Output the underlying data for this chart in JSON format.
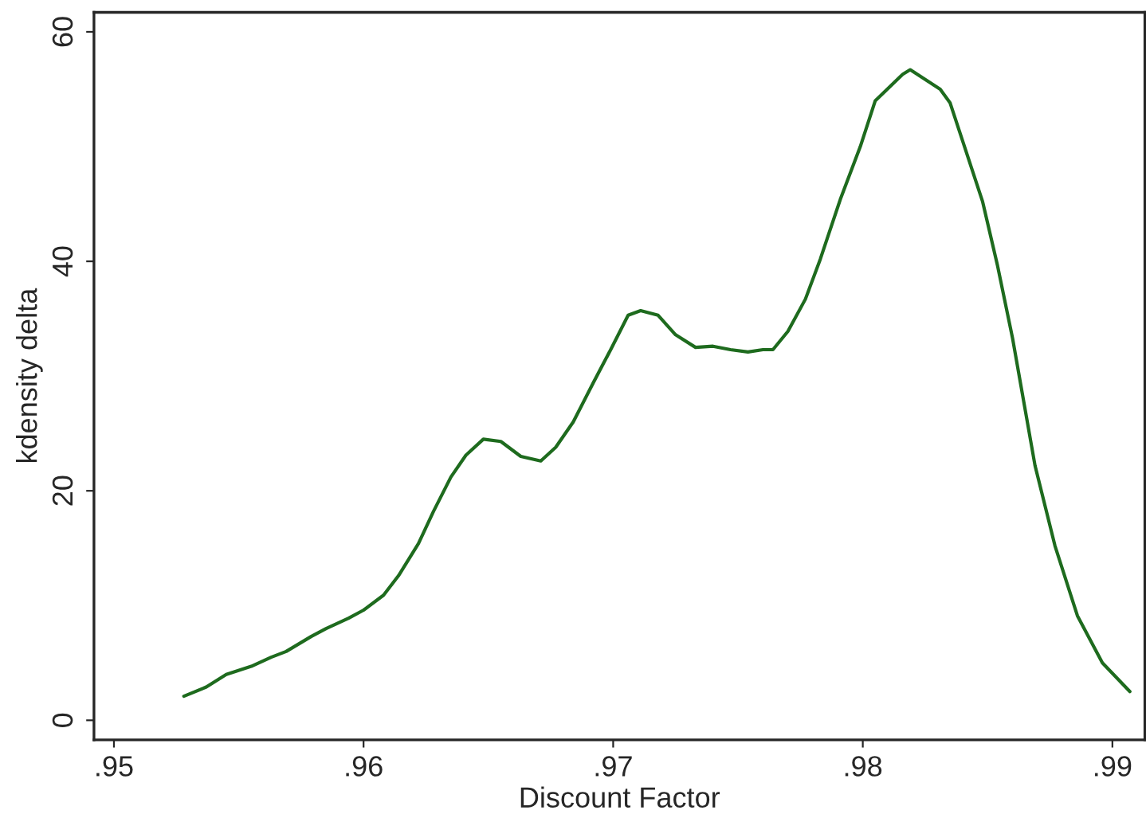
{
  "chart_data": {
    "type": "line",
    "xlabel": "Discount Factor",
    "ylabel": "kdensity delta",
    "x": [
      0.9528,
      0.9537,
      0.9545,
      0.9555,
      0.9563,
      0.9569,
      0.9579,
      0.9585,
      0.9594,
      0.96,
      0.9608,
      0.9614,
      0.9622,
      0.9628,
      0.9635,
      0.9641,
      0.9648,
      0.9655,
      0.9663,
      0.9671,
      0.9677,
      0.9684,
      0.9692,
      0.9699,
      0.9706,
      0.9711,
      0.9718,
      0.9725,
      0.9733,
      0.974,
      0.9747,
      0.9754,
      0.976,
      0.9764,
      0.977,
      0.9777,
      0.9783,
      0.9791,
      0.9799,
      0.9805,
      0.9816,
      0.9819,
      0.9831,
      0.9835,
      0.9848,
      0.9854,
      0.986,
      0.9869,
      0.9877,
      0.9886,
      0.9896,
      0.9907
    ],
    "series": [
      {
        "color": "#1e6b1e",
        "values": [
          2.1,
          2.9,
          4.0,
          4.7,
          5.5,
          6.0,
          7.3,
          8.0,
          8.9,
          9.6,
          10.9,
          12.6,
          15.4,
          18.2,
          21.2,
          23.1,
          24.5,
          24.3,
          23.0,
          22.6,
          23.8,
          26.0,
          29.4,
          32.3,
          35.3,
          35.7,
          35.3,
          33.6,
          32.5,
          32.6,
          32.3,
          32.1,
          32.3,
          32.3,
          33.9,
          36.7,
          40.2,
          45.4,
          50.0,
          54.0,
          56.3,
          56.7,
          55.0,
          53.8,
          45.2,
          39.6,
          33.3,
          22.2,
          15.2,
          9.1,
          5.0,
          2.5
        ]
      }
    ],
    "xlim": [
      0.9492,
      0.9913
    ],
    "ylim": [
      -1.7,
      61.7
    ],
    "xticks": [
      {
        "value": 0.95,
        "label": ".95"
      },
      {
        "value": 0.96,
        "label": ".96"
      },
      {
        "value": 0.97,
        "label": ".97"
      },
      {
        "value": 0.98,
        "label": ".98"
      },
      {
        "value": 0.99,
        "label": ".99"
      }
    ],
    "yticks": [
      0,
      20,
      40,
      60
    ],
    "grid": false,
    "marker": "none",
    "line_style": "solid"
  }
}
